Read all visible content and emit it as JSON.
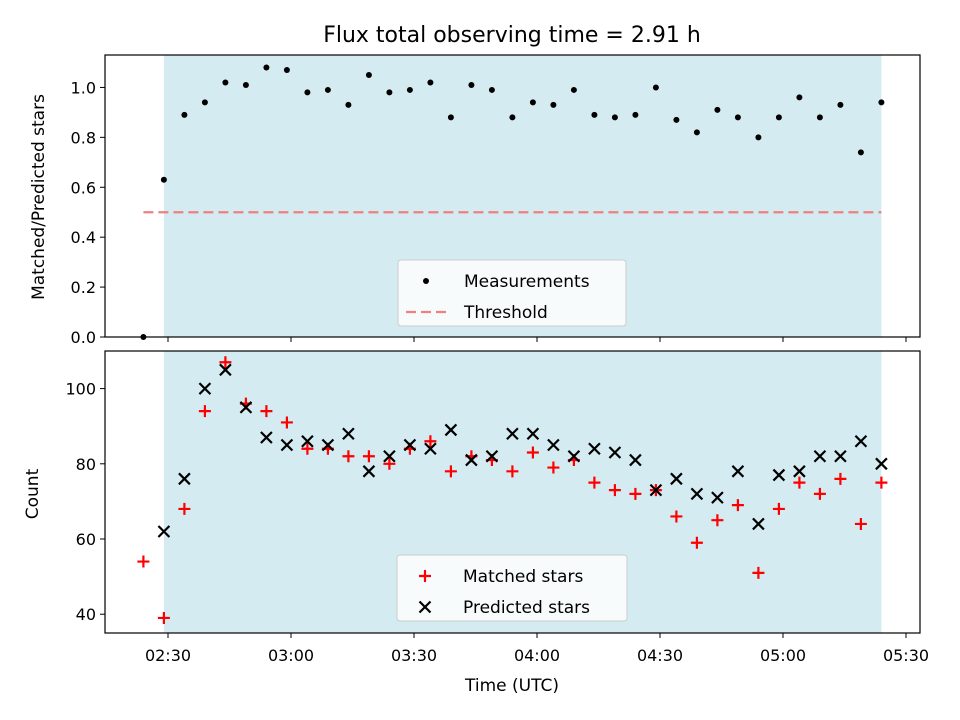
{
  "chart_data": [
    {
      "type": "scatter",
      "title": "Flux total observing time = 2.91 h",
      "ylabel": "Matched/Predicted stars",
      "xlabel": "",
      "ylim": [
        0,
        1.13
      ],
      "yticks": [
        "0.0",
        "0.2",
        "0.4",
        "0.6",
        "0.8",
        "1.0"
      ],
      "shaded_interval": [
        "02:29",
        "05:24"
      ],
      "threshold": {
        "value": 0.5,
        "from": "02:24",
        "to": "05:24"
      },
      "legend": [
        "Measurements",
        "Threshold"
      ],
      "legend_position": "bottom-center",
      "series": [
        {
          "name": "Measurements",
          "x": [
            "02:24",
            "02:29",
            "02:34",
            "02:39",
            "02:44",
            "02:49",
            "02:54",
            "02:59",
            "03:04",
            "03:09",
            "03:14",
            "03:19",
            "03:24",
            "03:29",
            "03:34",
            "03:39",
            "03:44",
            "03:49",
            "03:54",
            "03:59",
            "04:04",
            "04:09",
            "04:14",
            "04:19",
            "04:24",
            "04:29",
            "04:34",
            "04:39",
            "04:44",
            "04:49",
            "04:54",
            "04:59",
            "05:04",
            "05:09",
            "05:14",
            "05:19",
            "05:24"
          ],
          "y": [
            0.0,
            0.63,
            0.89,
            0.94,
            1.02,
            1.01,
            1.08,
            1.07,
            0.98,
            0.99,
            0.93,
            1.05,
            0.98,
            0.99,
            1.02,
            0.88,
            1.01,
            0.99,
            0.88,
            0.94,
            0.93,
            0.99,
            0.89,
            0.88,
            0.89,
            1.0,
            0.87,
            0.82,
            0.91,
            0.88,
            0.8,
            0.88,
            0.96,
            0.88,
            0.93,
            0.74,
            0.94
          ]
        }
      ]
    },
    {
      "type": "scatter",
      "title": "",
      "ylabel": "Count",
      "xlabel": "Time (UTC)",
      "ylim": [
        35,
        110
      ],
      "yticks": [
        "40",
        "60",
        "80",
        "100"
      ],
      "xticks": [
        "02:30",
        "03:00",
        "03:30",
        "04:00",
        "04:30",
        "05:00",
        "05:30"
      ],
      "legend": [
        "Matched stars",
        "Predicted stars"
      ],
      "legend_position": "bottom-center",
      "series": [
        {
          "name": "Matched stars",
          "x": [
            "02:24",
            "02:29",
            "02:34",
            "02:39",
            "02:44",
            "02:49",
            "02:54",
            "02:59",
            "03:04",
            "03:09",
            "03:14",
            "03:19",
            "03:24",
            "03:29",
            "03:34",
            "03:39",
            "03:44",
            "03:49",
            "03:54",
            "03:59",
            "04:04",
            "04:09",
            "04:14",
            "04:19",
            "04:24",
            "04:29",
            "04:34",
            "04:39",
            "04:44",
            "04:49",
            "04:54",
            "04:59",
            "05:04",
            "05:09",
            "05:14",
            "05:19",
            "05:24"
          ],
          "y": [
            54,
            39,
            68,
            94,
            107,
            96,
            94,
            91,
            84,
            84,
            82,
            82,
            80,
            84,
            86,
            78,
            82,
            81,
            78,
            83,
            79,
            81,
            75,
            73,
            72,
            73,
            66,
            59,
            65,
            69,
            51,
            68,
            75,
            72,
            76,
            64,
            75
          ]
        },
        {
          "name": "Predicted stars",
          "x": [
            "02:29",
            "02:34",
            "02:39",
            "02:44",
            "02:49",
            "02:54",
            "02:59",
            "03:04",
            "03:09",
            "03:14",
            "03:19",
            "03:24",
            "03:29",
            "03:34",
            "03:39",
            "03:44",
            "03:49",
            "03:54",
            "03:59",
            "04:04",
            "04:09",
            "04:14",
            "04:19",
            "04:24",
            "04:29",
            "04:34",
            "04:39",
            "04:44",
            "04:49",
            "04:54",
            "04:59",
            "05:04",
            "05:09",
            "05:14",
            "05:19",
            "05:24"
          ],
          "y": [
            62,
            76,
            100,
            105,
            95,
            87,
            85,
            86,
            85,
            88,
            78,
            82,
            85,
            84,
            89,
            81,
            82,
            88,
            88,
            85,
            82,
            84,
            83,
            81,
            73,
            76,
            72,
            71,
            78,
            64,
            77,
            78,
            82,
            82,
            86,
            80
          ]
        }
      ]
    }
  ],
  "colors": {
    "shade": "#d4ebf1",
    "threshold": "#f08080",
    "matched": "#ff0000",
    "predicted": "#000000",
    "measurement": "#000000"
  }
}
